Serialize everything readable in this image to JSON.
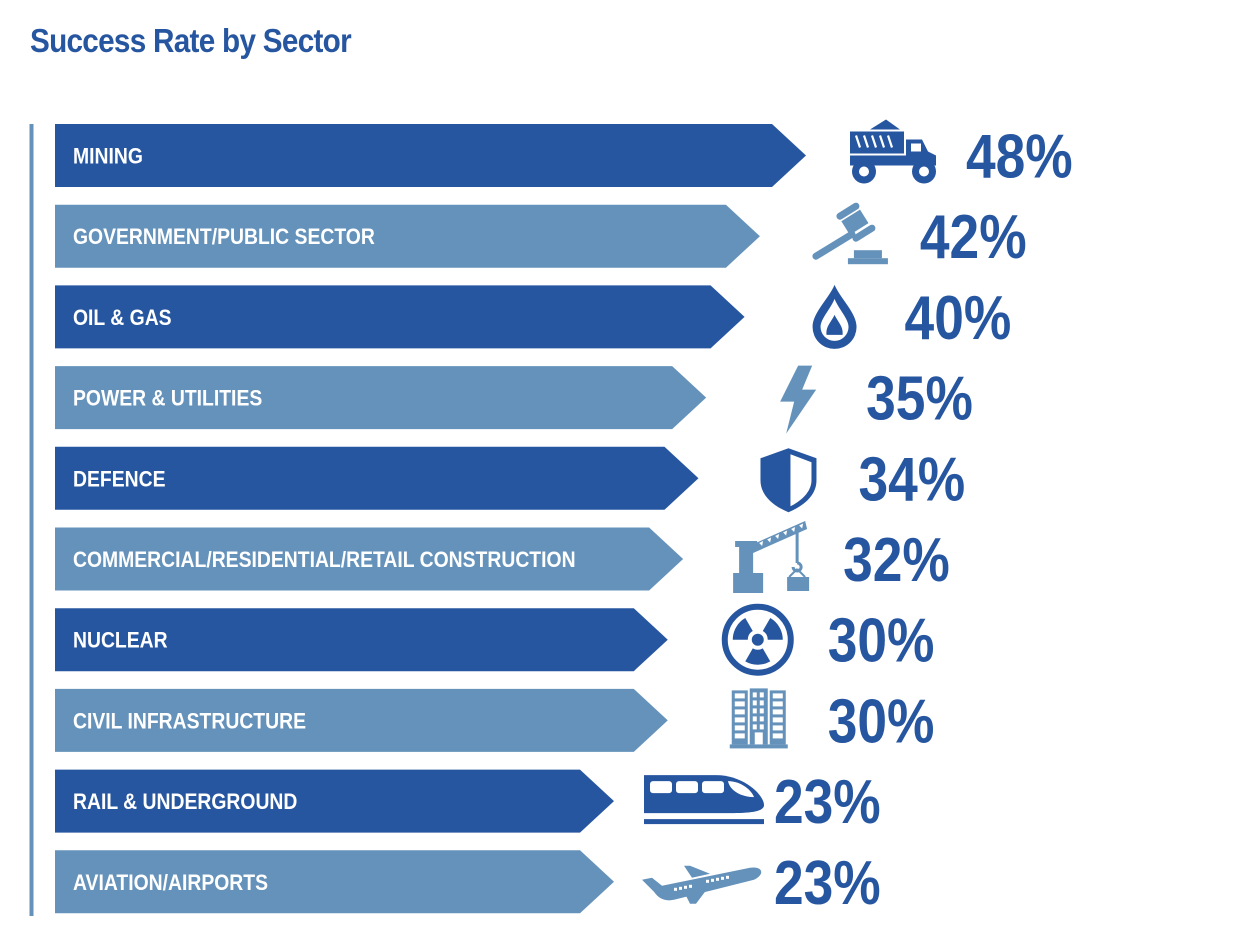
{
  "colors": {
    "title": "#2756a0",
    "dark_bar": "#2756a0",
    "light_bar": "#6592ba",
    "axis_line": "#6592ba",
    "value_text": "#2756a0",
    "bar_text": "#ffffff"
  },
  "chart_data": {
    "type": "bar",
    "orientation": "horizontal",
    "title": "Success Rate by Sector",
    "xlabel": "",
    "ylabel": "",
    "unit": "%",
    "xlim": [
      0,
      48
    ],
    "grid": false,
    "legend": "none",
    "categories": [
      "MINING",
      "GOVERNMENT/PUBLIC SECTOR",
      "OIL & GAS",
      "POWER & UTILITIES",
      "DEFENCE",
      "COMMERCIAL/RESIDENTIAL/RETAIL CONSTRUCTION",
      "NUCLEAR",
      "CIVIL INFRASTRUCTURE",
      "RAIL & UNDERGROUND",
      "AVIATION/AIRPORTS"
    ],
    "values": [
      48,
      42,
      40,
      35,
      34,
      32,
      30,
      30,
      23,
      23
    ],
    "value_labels": [
      "48%",
      "42%",
      "40%",
      "35%",
      "34%",
      "32%",
      "30%",
      "30%",
      "23%",
      "23%"
    ],
    "icons": [
      "dump-truck-icon",
      "gavel-icon",
      "gas-flame-icon",
      "lightning-bolt-icon",
      "shield-icon",
      "crane-icon",
      "radiation-icon",
      "building-icon",
      "train-icon",
      "airplane-icon"
    ],
    "bar_shades": [
      "dark",
      "light",
      "dark",
      "light",
      "dark",
      "light",
      "dark",
      "light",
      "dark",
      "light"
    ]
  }
}
